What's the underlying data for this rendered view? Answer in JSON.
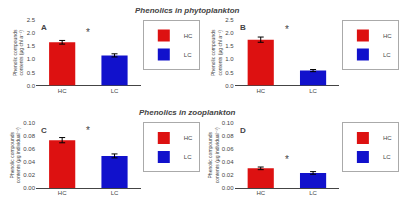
{
  "chart_data": [
    {
      "type": "bar",
      "title": "Phenolics in phytoplankton",
      "categories": [
        "HC",
        "LC"
      ],
      "series": [
        {
          "name": "HC",
          "color": "#dd1111",
          "values": [
            1.65,
            null
          ],
          "errors": [
            0.07,
            null
          ]
        },
        {
          "name": "LC",
          "color": "#1111cc",
          "values": [
            null,
            1.15
          ],
          "errors": [
            null,
            0.06
          ]
        }
      ],
      "ylabel": "Phenolic compounds\ncontents (μg chl a⁻¹)",
      "ylim": [
        0.0,
        2.5
      ],
      "yticks": [
        {
          "value": 0,
          "label": "0.0"
        },
        0.5,
        {
          "value": 1,
          "label": "1.0"
        },
        1.5,
        {
          "value": 2,
          "label": "2.0"
        },
        2.5
      ],
      "grid": false,
      "legend": "upper right",
      "annotations": [
        {
          "text": "A"
        },
        {
          "text": "*"
        }
      ]
    },
    {
      "type": "bar",
      "categories": [
        "HC",
        "LC"
      ],
      "series": [
        {
          "name": "HC",
          "color": "#dd1111",
          "values": [
            1.75,
            null
          ],
          "errors": [
            0.1,
            null
          ]
        },
        {
          "name": "LC",
          "color": "#1111cc",
          "values": [
            null,
            0.57
          ],
          "errors": [
            null,
            0.04
          ]
        }
      ],
      "ylabel": "Phenolic compounds\ncontents (μg chl a⁻¹)",
      "ylim": [
        0.0,
        2.5
      ],
      "yticks": [
        {
          "value": 0,
          "label": "0.0"
        },
        0.5,
        {
          "value": 1,
          "label": "1.0"
        },
        1.5,
        {
          "value": 2,
          "label": "2.0"
        },
        2.5
      ],
      "grid": false,
      "legend": "upper right",
      "annotations": [
        {
          "text": "B"
        },
        {
          "text": "*"
        }
      ]
    },
    {
      "type": "bar",
      "title": "Phenolics in zooplankton",
      "categories": [
        "HC",
        "LC"
      ],
      "series": [
        {
          "name": "HC",
          "color": "#dd1111",
          "values": [
            0.073,
            null
          ],
          "errors": [
            0.004,
            null
          ]
        },
        {
          "name": "LC",
          "color": "#1111cc",
          "values": [
            null,
            0.049
          ],
          "errors": [
            null,
            0.003
          ]
        }
      ],
      "ylabel": "Phenolic compounds\ncontents (μg individual⁻¹)",
      "ylim": [
        0.0,
        0.1
      ],
      "yticks": [
        {
          "value": 0,
          "label": "0.00"
        },
        0.02,
        0.04,
        0.06,
        0.08,
        {
          "value": 0.1,
          "label": "0.10"
        }
      ],
      "grid": false,
      "legend": "upper right",
      "annotations": [
        {
          "text": "C"
        },
        {
          "text": "*"
        }
      ]
    },
    {
      "type": "bar",
      "categories": [
        "HC",
        "LC"
      ],
      "series": [
        {
          "name": "HC",
          "color": "#dd1111",
          "values": [
            0.03,
            null
          ],
          "errors": [
            0.002,
            null
          ]
        },
        {
          "name": "LC",
          "color": "#1111cc",
          "values": [
            null,
            0.023
          ],
          "errors": [
            null,
            0.002
          ]
        }
      ],
      "ylabel": "Phenolic compounds\ncontents (μg individual⁻¹)",
      "ylim": [
        0.0,
        0.1
      ],
      "yticks": [
        {
          "value": 0,
          "label": "0.00"
        },
        0.02,
        0.04,
        0.06,
        0.08,
        {
          "value": 0.1,
          "label": "0.10"
        }
      ],
      "grid": false,
      "legend": "upper right",
      "annotations": [
        {
          "text": "D"
        },
        {
          "text": "*"
        }
      ]
    }
  ]
}
